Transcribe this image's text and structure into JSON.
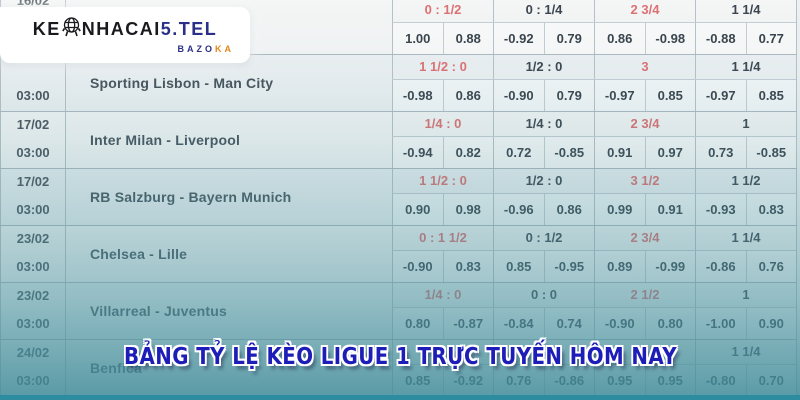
{
  "logo": {
    "brand_prefix": "KE",
    "brand_suffix": "NHACAI",
    "brand_highlight": "5.TEL",
    "subtitle_primary": "BAZO",
    "subtitle_accent": "KA",
    "mascot_icon": "globe-mascot-icon"
  },
  "banner": {
    "text": "BẢNG TỶ LỆ KÈO LIGUE 1 TRỰC TUYẾN HÔM NAY"
  },
  "colors": {
    "handicap_red": "#dd7173",
    "text_dark": "#3c4650",
    "logo_navy": "#2b2f88",
    "logo_orange": "#e2861c",
    "banner_blue": "#1d1db8",
    "overlay_teal": "#4d94a0",
    "bottom_bar_teal": "#2e8ca0"
  },
  "table": {
    "matches": [
      {
        "date": "16/02",
        "time": "",
        "name": "",
        "handicaps": [
          {
            "text": "0 : 1/2",
            "tone": "red"
          },
          {
            "text": "0 : 1/4",
            "tone": "dark"
          },
          {
            "text": "2 3/4",
            "tone": "red"
          },
          {
            "text": "1 1/4",
            "tone": "dark"
          }
        ],
        "odds": [
          "1.00",
          "0.88",
          "-0.92",
          "0.79",
          "0.86",
          "-0.98",
          "-0.88",
          "0.77"
        ]
      },
      {
        "date": "",
        "time": "03:00",
        "name": "Sporting Lisbon - Man City",
        "handicaps": [
          {
            "text": "1 1/2 : 0",
            "tone": "red"
          },
          {
            "text": "1/2 : 0",
            "tone": "dark"
          },
          {
            "text": "3",
            "tone": "red"
          },
          {
            "text": "1 1/4",
            "tone": "dark"
          }
        ],
        "odds": [
          "-0.98",
          "0.86",
          "-0.90",
          "0.79",
          "-0.97",
          "0.85",
          "-0.97",
          "0.85"
        ]
      },
      {
        "date": "17/02",
        "time": "03:00",
        "name": "Inter Milan - Liverpool",
        "handicaps": [
          {
            "text": "1/4 : 0",
            "tone": "red"
          },
          {
            "text": "1/4 : 0",
            "tone": "dark"
          },
          {
            "text": "2 3/4",
            "tone": "red"
          },
          {
            "text": "1",
            "tone": "dark"
          }
        ],
        "odds": [
          "-0.94",
          "0.82",
          "0.72",
          "-0.85",
          "0.91",
          "0.97",
          "0.73",
          "-0.85"
        ]
      },
      {
        "date": "17/02",
        "time": "03:00",
        "name": "RB Salzburg - Bayern Munich",
        "handicaps": [
          {
            "text": "1 1/2 : 0",
            "tone": "red"
          },
          {
            "text": "1/2 : 0",
            "tone": "dark"
          },
          {
            "text": "3 1/2",
            "tone": "red"
          },
          {
            "text": "1 1/2",
            "tone": "dark"
          }
        ],
        "odds": [
          "0.90",
          "0.98",
          "-0.96",
          "0.86",
          "0.99",
          "0.91",
          "-0.93",
          "0.83"
        ]
      },
      {
        "date": "23/02",
        "time": "03:00",
        "name": "Chelsea - Lille",
        "handicaps": [
          {
            "text": "0 : 1 1/2",
            "tone": "red"
          },
          {
            "text": "0 : 1/2",
            "tone": "dark"
          },
          {
            "text": "2 3/4",
            "tone": "red"
          },
          {
            "text": "1 1/4",
            "tone": "dark"
          }
        ],
        "odds": [
          "-0.90",
          "0.83",
          "0.85",
          "-0.95",
          "0.89",
          "-0.99",
          "-0.86",
          "0.76"
        ]
      },
      {
        "date": "23/02",
        "time": "03:00",
        "name": "Villarreal - Juventus",
        "handicaps": [
          {
            "text": "1/4 : 0",
            "tone": "red"
          },
          {
            "text": "0 : 0",
            "tone": "dark"
          },
          {
            "text": "2 1/2",
            "tone": "red"
          },
          {
            "text": "1",
            "tone": "dark"
          }
        ],
        "odds": [
          "0.80",
          "-0.87",
          "-0.84",
          "0.74",
          "-0.90",
          "0.80",
          "-1.00",
          "0.90"
        ]
      },
      {
        "date": "24/02",
        "time": "03:00",
        "name": "Benfica",
        "handicaps": [
          {
            "text": "",
            "tone": "red"
          },
          {
            "text": "",
            "tone": "dark"
          },
          {
            "text": "2 3/4",
            "tone": "red"
          },
          {
            "text": "1 1/4",
            "tone": "dark"
          }
        ],
        "odds": [
          "0.85",
          "-0.92",
          "0.76",
          "-0.86",
          "0.95",
          "0.95",
          "-0.80",
          "0.70"
        ]
      }
    ]
  }
}
